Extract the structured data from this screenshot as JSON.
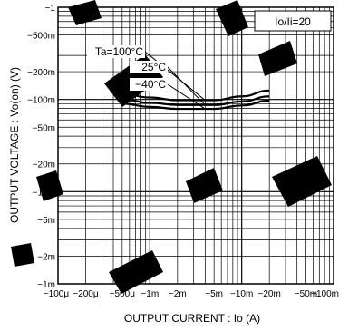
{
  "chart_data": {
    "type": "line",
    "title": "",
    "xlabel": "OUTPUT  CURRENT : Io (A)",
    "ylabel": "OUTPUT  VOLTAGE : Vo(on) (V)",
    "x_scale": "log",
    "y_scale": "log",
    "xlim": [
      0.0001,
      0.1
    ],
    "ylim": [
      0.001,
      1
    ],
    "grid": true,
    "x_ticks": [
      0.0001,
      0.0002,
      0.0005,
      0.001,
      0.002,
      0.005,
      0.01,
      0.02,
      0.05,
      0.1
    ],
    "x_tick_labels": [
      "−100μ",
      "−200μ",
      "−500μ",
      "−1m",
      "−2m",
      "−5m",
      "−10m",
      "−20m",
      "−50m",
      "−100m"
    ],
    "y_ticks": [
      1,
      0.5,
      0.2,
      0.1,
      0.05,
      0.02,
      0.01,
      0.005,
      0.002,
      0.001
    ],
    "y_tick_labels": [
      "−1",
      "−500m",
      "−200m",
      "−100m",
      "−50m",
      "−20m",
      "−10m",
      "−5m",
      "−2m",
      "−1m"
    ],
    "legend_box": "Io/Ii=20",
    "series": [
      {
        "name": "Ta=100°C",
        "x": [
          0.0005,
          0.001,
          0.002,
          0.005,
          0.01,
          0.02
        ],
        "y": [
          0.115,
          0.105,
          0.098,
          0.098,
          0.108,
          0.125
        ]
      },
      {
        "name": "25°C",
        "x": [
          0.0005,
          0.001,
          0.002,
          0.005,
          0.01,
          0.02
        ],
        "y": [
          0.1,
          0.092,
          0.087,
          0.087,
          0.095,
          0.108
        ]
      },
      {
        "name": "−40°C",
        "x": [
          0.0005,
          0.001,
          0.002,
          0.005,
          0.01,
          0.02
        ],
        "y": [
          0.09,
          0.083,
          0.079,
          0.079,
          0.086,
          0.097
        ]
      }
    ],
    "annotations": [
      "Ta=100°C",
      "25°C",
      "−40°C"
    ]
  }
}
